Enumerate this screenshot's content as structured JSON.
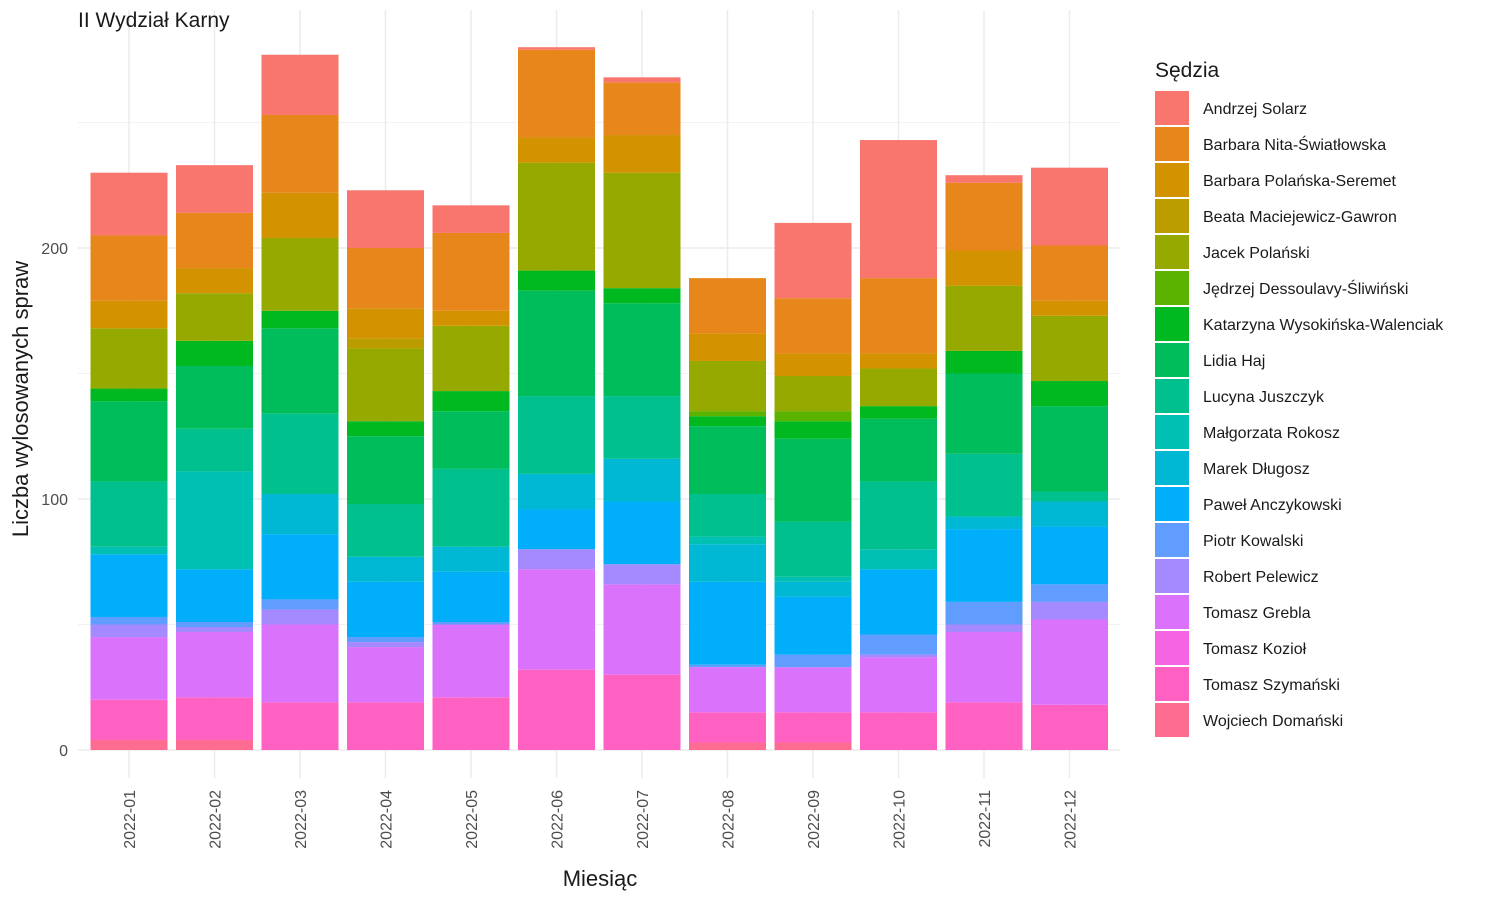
{
  "chart_data": {
    "type": "bar",
    "stacked": true,
    "title": "II Wydział Karny",
    "xlabel": "Miesiąc",
    "ylabel": "Liczba wylosowanych spraw",
    "ylim": [
      0,
      285
    ],
    "yticks": [
      0,
      100,
      200
    ],
    "grid": true,
    "legend_title": "Sędzia",
    "legend_position": "right",
    "categories": [
      "2022-01",
      "2022-02",
      "2022-03",
      "2022-04",
      "2022-05",
      "2022-06",
      "2022-07",
      "2022-08",
      "2022-09",
      "2022-10",
      "2022-11",
      "2022-12"
    ],
    "series": [
      {
        "name": "Andrzej Solarz",
        "color": "#F8766D",
        "values": [
          25,
          19,
          24,
          23,
          11,
          1,
          2,
          0,
          30,
          55,
          3,
          31
        ]
      },
      {
        "name": "Barbara Nita-Światłowska",
        "color": "#E7861B",
        "values": [
          26,
          22,
          31,
          24,
          31,
          35,
          21,
          22,
          22,
          30,
          27,
          22
        ]
      },
      {
        "name": "Barbara Polańska-Seremet",
        "color": "#D39200",
        "values": [
          11,
          10,
          18,
          12,
          6,
          10,
          15,
          11,
          9,
          6,
          14,
          6
        ]
      },
      {
        "name": "Beata Maciejewicz-Gawron",
        "color": "#BC9D00",
        "values": [
          0,
          0,
          0,
          4,
          0,
          0,
          0,
          0,
          0,
          0,
          0,
          0
        ]
      },
      {
        "name": "Jacek Polański",
        "color": "#95A900",
        "values": [
          24,
          19,
          29,
          29,
          26,
          43,
          46,
          20,
          14,
          15,
          26,
          26
        ]
      },
      {
        "name": "Jędrzej Dessoulavy-Śliwiński",
        "color": "#5BB300",
        "values": [
          0,
          0,
          0,
          0,
          0,
          0,
          0,
          2,
          4,
          0,
          0,
          0
        ]
      },
      {
        "name": "Katarzyna Wysokińska-Walenciak",
        "color": "#00B81F",
        "values": [
          5,
          10,
          7,
          6,
          8,
          8,
          6,
          4,
          7,
          5,
          9,
          10
        ]
      },
      {
        "name": "Lidia Haj",
        "color": "#00BD5C",
        "values": [
          32,
          25,
          34,
          27,
          23,
          42,
          37,
          27,
          33,
          25,
          32,
          34
        ]
      },
      {
        "name": "Lucyna Juszczyk",
        "color": "#00C08D",
        "values": [
          26,
          17,
          32,
          21,
          31,
          31,
          25,
          17,
          22,
          27,
          25,
          4
        ]
      },
      {
        "name": "Małgorzata Rokosz",
        "color": "#00BFB3",
        "values": [
          3,
          39,
          0,
          0,
          0,
          0,
          0,
          3,
          2,
          8,
          0,
          0
        ]
      },
      {
        "name": "Marek Długosz",
        "color": "#00B8D3",
        "values": [
          0,
          0,
          16,
          10,
          10,
          14,
          17,
          15,
          6,
          0,
          5,
          10
        ]
      },
      {
        "name": "Paweł Anczykowski",
        "color": "#00AEFA",
        "values": [
          25,
          21,
          26,
          22,
          20,
          16,
          25,
          33,
          23,
          26,
          29,
          23
        ]
      },
      {
        "name": "Piotr Kowalski",
        "color": "#619CFF",
        "values": [
          3,
          2,
          4,
          2,
          1,
          0,
          0,
          1,
          5,
          8,
          9,
          7
        ]
      },
      {
        "name": "Robert Pelewicz",
        "color": "#A58AFF",
        "values": [
          5,
          2,
          6,
          2,
          0,
          8,
          8,
          0,
          0,
          1,
          3,
          7
        ]
      },
      {
        "name": "Tomasz Grebla",
        "color": "#DB72FB",
        "values": [
          25,
          26,
          31,
          22,
          29,
          40,
          36,
          18,
          18,
          22,
          28,
          34
        ]
      },
      {
        "name": "Tomasz Kozioł",
        "color": "#F564E3",
        "values": [
          0,
          0,
          0,
          0,
          0,
          0,
          0,
          0,
          0,
          0,
          0,
          0
        ]
      },
      {
        "name": "Tomasz Szymański",
        "color": "#FF61C3",
        "values": [
          16,
          17,
          19,
          19,
          21,
          32,
          30,
          12,
          12,
          15,
          19,
          18
        ]
      },
      {
        "name": "Wojciech Domański",
        "color": "#FF6C91",
        "values": [
          4,
          4,
          0,
          0,
          0,
          0,
          0,
          3,
          3,
          0,
          0,
          0
        ]
      }
    ]
  }
}
